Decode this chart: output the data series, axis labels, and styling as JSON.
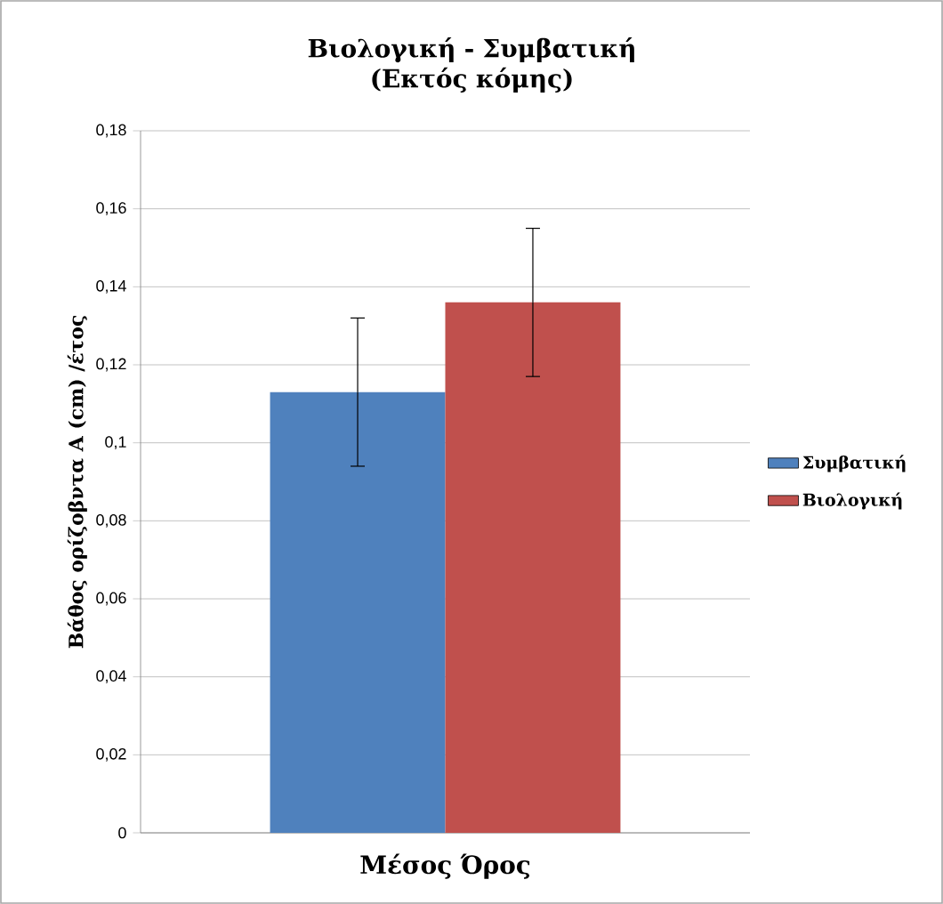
{
  "chart_data": {
    "type": "bar",
    "title": "Βιολογική - Συμβατική (Εκτός κόμης)",
    "ylabel": "Βάθος ορίζοβντα Α (cm) /έτος",
    "categories": [
      "Μέσος Όρος"
    ],
    "series": [
      {
        "name": "Συμβατική",
        "color": "#4f81bd",
        "values": [
          0.113
        ],
        "errors": [
          0.019
        ]
      },
      {
        "name": "Βιολογική",
        "color": "#c0504d",
        "values": [
          0.136
        ],
        "errors": [
          0.019
        ]
      }
    ],
    "ylim": [
      0,
      0.18
    ],
    "yticks": [
      0,
      {
        "value": 0.02,
        "label": "0,02"
      },
      {
        "value": 0.04,
        "label": "0,04"
      },
      {
        "value": 0.06,
        "label": "0,06"
      },
      {
        "value": 0.08,
        "label": "0,08"
      },
      {
        "value": 0.1,
        "label": "0,1"
      },
      {
        "value": 0.12,
        "label": "0,12"
      },
      {
        "value": 0.14,
        "label": "0,14"
      },
      {
        "value": 0.16,
        "label": "0,16"
      },
      {
        "value": 0.18,
        "label": "0,18"
      }
    ],
    "grid": "y",
    "legend": "right"
  }
}
